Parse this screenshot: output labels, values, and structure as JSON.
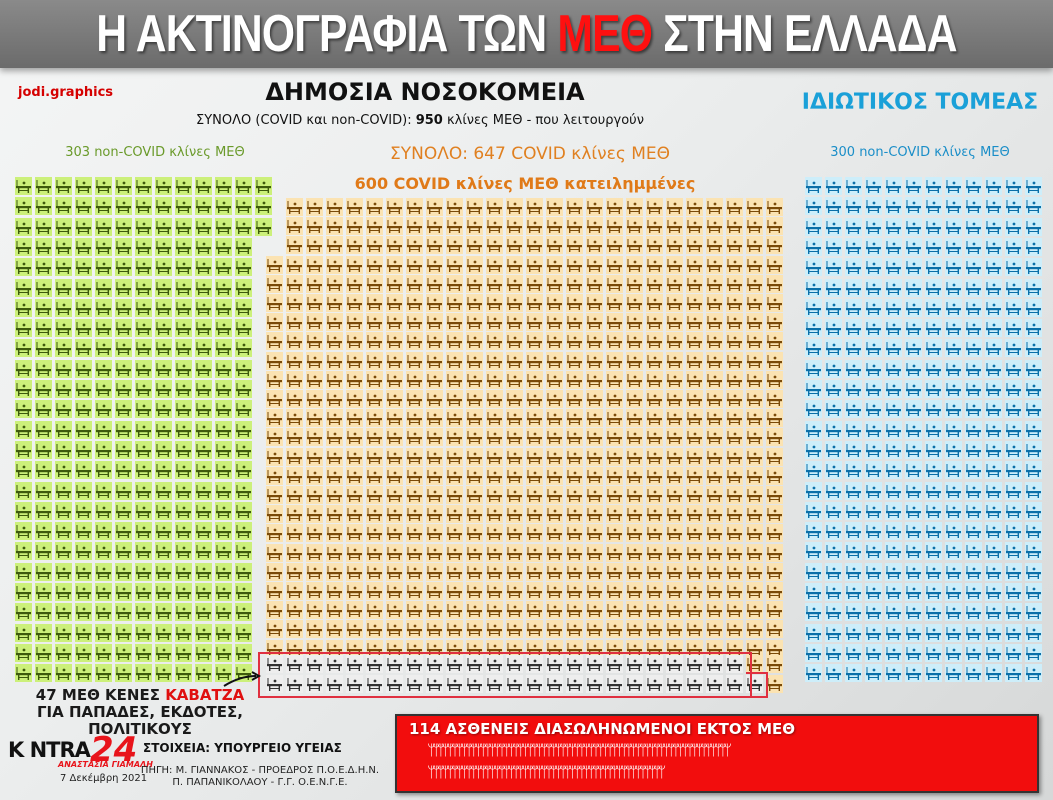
{
  "header": {
    "title_pre": "Η ΑΚΤΙΝΟΓΡΑΦΙΑ ΤΩΝ ",
    "title_highlight": "ΜΕΘ",
    "title_post": " ΣΤΗΝ ΕΛΛΑΔΑ"
  },
  "brand": "jodi.graphics",
  "public": {
    "heading": "ΔΗΜΟΣΙΑ ΝΟΣΟΚΟΜΕΙΑ",
    "subtitle_pre": "ΣΥΝΟΛΟ (COVID και non-COVID): ",
    "subtitle_bold": "950",
    "subtitle_post": " κλίνες ΜΕΘ - που λειτουργούν",
    "noncovid_label": "303 non-COVID κλίνες ΜΕΘ",
    "covid_total_label": "ΣΥΝΟΛΟ: 647 COVID κλίνες ΜΕΘ",
    "covid_occupied_label": "600 COVID κλίνες ΜΕΘ κατειλημμένες"
  },
  "private": {
    "heading": "ΙΔΙΩΤΙΚΟΣ ΤΟΜΕΑΣ",
    "noncovid_label": "300 non-COVID κλίνες ΜΕΘ"
  },
  "annotation": {
    "pre": "47 ΜΕΘ ΚΕΝΕΣ ",
    "highlight": "ΚΑΒΑΤΖΑ",
    "post": " ΓΙΑ ΠΑΠΑΔΕΣ, ΕΚΔΟΤΕΣ, ΠΟΛΙΤΙΚΟΥΣ"
  },
  "logo": {
    "text": "K NTRA",
    "number": "24",
    "name": "ΑΝΑΣΤΑΣΙΑ ΓΙΑΜΑΛΗ",
    "date": "7 Δεκέμβρη 2021"
  },
  "source": {
    "heading": "ΣΤΟΙΧΕΙΑ: ΥΠΟΥΡΓΕΙΟ ΥΓΕΙΑΣ",
    "line1": "ΠΗΓΗ: Μ. ΓΙΑΝΝΑΚΟΣ - ΠΡΟΕΔΡΟΣ Π.Ο.Ε.Δ.Η.Ν.",
    "line2": "Π. ΠΑΠΑΝΙΚΟΛΑΟΥ - Γ.Γ. Ο.Ε.Ν.Γ.Ε."
  },
  "patients": {
    "label": "114 ΑΣΘΕΝΕΙΣ ΔΙΑΣΩΛΗΝΩΜΕΝΟΙ ΕΚΤΟΣ ΜΕΘ",
    "count": 114,
    "row1": 64,
    "row2": 50
  },
  "colors": {
    "noncovid_public": "#ccf07a",
    "covid_occupied": "#fbe3b2",
    "covid_empty": "#eeeeee",
    "private": "#cdeefa",
    "accent_red": "#f20d0d"
  },
  "chart_data": {
    "type": "pictogram",
    "title": "Η ΑΚΤΙΝΟΓΡΑΦΙΑ ΤΩΝ ΜΕΘ ΣΤΗΝ ΕΛΛΑΔΑ",
    "categories": [
      "Δημόσια non-COVID κλίνες ΜΕΘ",
      "Δημόσια COVID κλίνες ΜΕΘ κατειλημμένες",
      "Δημόσια COVID κλίνες ΜΕΘ κενές",
      "Ιδιωτικός τομέας non-COVID κλίνες ΜΕΘ",
      "Ασθενείς διασωληνωμένοι εκτός ΜΕΘ"
    ],
    "values": [
      303,
      600,
      47,
      300,
      114
    ],
    "totals": {
      "public_all": 950,
      "public_covid": 647
    },
    "unit": "κλίνες ΜΕΘ / ασθενείς"
  }
}
